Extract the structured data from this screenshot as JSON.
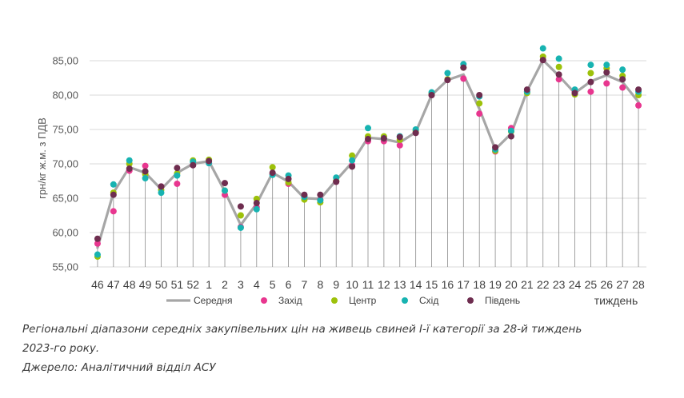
{
  "chart_data": {
    "type": "line",
    "title": "",
    "xlabel": "тиждень",
    "ylabel": "грн/кг ж.м. з ПДВ",
    "ylim": [
      55,
      85
    ],
    "yticks": [
      "55,00",
      "60,00",
      "65,00",
      "70,00",
      "75,00",
      "80,00",
      "85,00"
    ],
    "ytick_values": [
      55,
      60,
      65,
      70,
      75,
      80,
      85
    ],
    "grid": "horizontal",
    "legend_position": "bottom",
    "categories": [
      "46",
      "47",
      "48",
      "49",
      "50",
      "51",
      "52",
      "1",
      "2",
      "3",
      "4",
      "5",
      "6",
      "7",
      "8",
      "9",
      "10",
      "11",
      "12",
      "13",
      "14",
      "15",
      "16",
      "17",
      "18",
      "19",
      "20",
      "21",
      "22",
      "23",
      "24",
      "25",
      "26",
      "27",
      "28"
    ],
    "series": [
      {
        "name": "Середня",
        "kind": "line",
        "color": "#a6a6a6",
        "values": [
          57.8,
          65.8,
          69.5,
          68.7,
          66.3,
          68.7,
          70.0,
          70.4,
          66.0,
          61.1,
          64.2,
          68.7,
          67.4,
          65.0,
          64.9,
          67.6,
          70.2,
          73.8,
          73.6,
          73.1,
          74.6,
          80.0,
          82.2,
          83.0,
          78.0,
          72.1,
          74.4,
          80.6,
          85.1,
          82.8,
          80.3,
          82.0,
          82.9,
          81.9,
          79.0
        ]
      },
      {
        "name": "Захід",
        "kind": "marker",
        "color": "#e8368f",
        "values": [
          58.4,
          63.1,
          69.0,
          69.7,
          66.7,
          67.1,
          69.8,
          70.1,
          65.5,
          60.8,
          63.7,
          68.5,
          67.1,
          65.3,
          64.8,
          67.4,
          69.8,
          73.3,
          73.3,
          72.7,
          74.5,
          80.0,
          82.2,
          82.4,
          77.3,
          71.8,
          75.2,
          80.5,
          85.1,
          82.3,
          80.5,
          80.5,
          81.7,
          81.1,
          78.5
        ]
      },
      {
        "name": "Центр",
        "kind": "marker",
        "color": "#9dc10a",
        "values": [
          56.5,
          65.8,
          70.0,
          68.5,
          66.2,
          68.6,
          70.5,
          70.6,
          66.1,
          62.5,
          64.9,
          69.5,
          67.3,
          64.8,
          64.4,
          67.5,
          71.2,
          74.0,
          74.0,
          73.5,
          74.8,
          80.2,
          82.3,
          84.0,
          78.8,
          71.9,
          74.7,
          80.3,
          85.6,
          84.1,
          80.1,
          83.2,
          83.9,
          82.8,
          80.0
        ]
      },
      {
        "name": "Схід",
        "kind": "marker",
        "color": "#17b3b1",
        "values": [
          56.8,
          67.0,
          70.5,
          67.9,
          65.8,
          68.3,
          70.3,
          70.1,
          66.1,
          60.7,
          63.4,
          68.4,
          68.3,
          65.2,
          64.7,
          68.0,
          70.5,
          75.2,
          73.7,
          74.0,
          75.0,
          80.4,
          83.2,
          84.5,
          79.8,
          72.1,
          74.8,
          80.5,
          86.8,
          85.3,
          80.8,
          84.4,
          84.4,
          83.7,
          80.5
        ]
      },
      {
        "name": "Південь",
        "kind": "marker",
        "color": "#6e2d4f",
        "values": [
          59.1,
          65.5,
          69.3,
          68.9,
          66.7,
          69.4,
          69.8,
          70.4,
          67.2,
          63.8,
          64.3,
          68.7,
          67.8,
          65.5,
          65.5,
          67.4,
          69.6,
          73.6,
          73.7,
          73.9,
          74.5,
          80.0,
          82.2,
          84.0,
          80.0,
          72.4,
          74.0,
          80.8,
          85.1,
          83.0,
          80.3,
          81.9,
          83.3,
          82.3,
          80.8
        ]
      }
    ]
  },
  "caption": {
    "line1": "Регіональні діапазони середніх закупівельних цін на живець свиней І-ї категорії за 28-й тиждень",
    "line2": "2023-го року.",
    "line3": "Джерело: Аналітичний відділ АСУ"
  }
}
